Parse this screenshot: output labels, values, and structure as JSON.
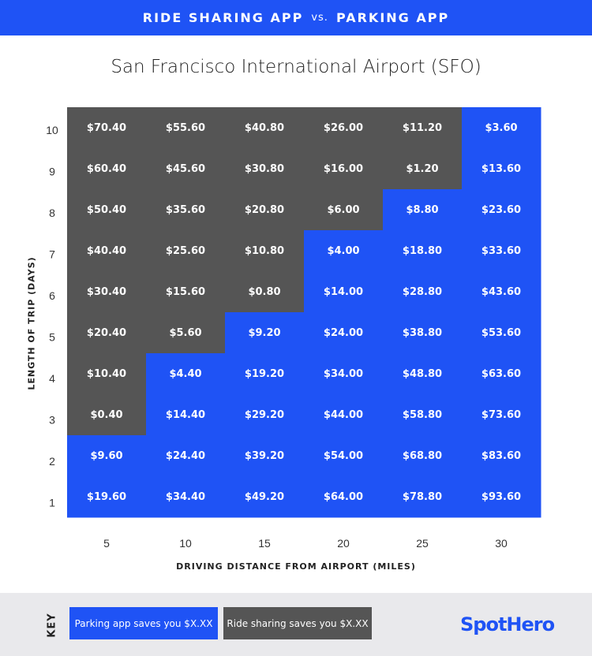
{
  "header": {
    "left": "RIDE SHARING APP",
    "vs": "vs.",
    "right": "PARKING APP"
  },
  "colors": {
    "parking": "#1f53f5",
    "rideshare": "#555555",
    "accent": "#1f53f5"
  },
  "chart_data": {
    "type": "heatmap",
    "title": "San Francisco International Airport (SFO)",
    "xlabel": "DRIVING DISTANCE FROM AIRPORT (MILES)",
    "ylabel": "LENGTH OF TRIP (DAYS)",
    "x": [
      5,
      10,
      15,
      20,
      25,
      30
    ],
    "x_tick_labels": [
      "5",
      "10",
      "15",
      "20",
      "25",
      "30"
    ],
    "y": [
      10,
      9,
      8,
      7,
      6,
      5,
      4,
      3,
      2,
      1
    ],
    "y_tick_labels": [
      "10",
      "9",
      "8",
      "7",
      "6",
      "5",
      "4",
      "3",
      "2",
      "1"
    ],
    "cells": [
      [
        "$70.40",
        "$55.60",
        "$40.80",
        "$26.00",
        "$11.20",
        "$3.60"
      ],
      [
        "$60.40",
        "$45.60",
        "$30.80",
        "$16.00",
        "$1.20",
        "$13.60"
      ],
      [
        "$50.40",
        "$35.60",
        "$20.80",
        "$6.00",
        "$8.80",
        "$23.60"
      ],
      [
        "$40.40",
        "$25.60",
        "$10.80",
        "$4.00",
        "$18.80",
        "$33.60"
      ],
      [
        "$30.40",
        "$15.60",
        "$0.80",
        "$14.00",
        "$28.80",
        "$43.60"
      ],
      [
        "$20.40",
        "$5.60",
        "$9.20",
        "$24.00",
        "$38.80",
        "$53.60"
      ],
      [
        "$10.40",
        "$4.40",
        "$19.20",
        "$34.00",
        "$48.80",
        "$63.60"
      ],
      [
        "$0.40",
        "$14.40",
        "$29.20",
        "$44.00",
        "$58.80",
        "$73.60"
      ],
      [
        "$9.60",
        "$24.40",
        "$39.20",
        "$54.00",
        "$68.80",
        "$83.60"
      ],
      [
        "$19.60",
        "$34.40",
        "$49.20",
        "$64.00",
        "$78.80",
        "$93.60"
      ]
    ],
    "saver": [
      [
        "ride",
        "ride",
        "ride",
        "ride",
        "ride",
        "parking"
      ],
      [
        "ride",
        "ride",
        "ride",
        "ride",
        "ride",
        "parking"
      ],
      [
        "ride",
        "ride",
        "ride",
        "ride",
        "parking",
        "parking"
      ],
      [
        "ride",
        "ride",
        "ride",
        "parking",
        "parking",
        "parking"
      ],
      [
        "ride",
        "ride",
        "ride",
        "parking",
        "parking",
        "parking"
      ],
      [
        "ride",
        "ride",
        "parking",
        "parking",
        "parking",
        "parking"
      ],
      [
        "ride",
        "parking",
        "parking",
        "parking",
        "parking",
        "parking"
      ],
      [
        "ride",
        "parking",
        "parking",
        "parking",
        "parking",
        "parking"
      ],
      [
        "parking",
        "parking",
        "parking",
        "parking",
        "parking",
        "parking"
      ],
      [
        "parking",
        "parking",
        "parking",
        "parking",
        "parking",
        "parking"
      ]
    ]
  },
  "key": {
    "label": "KEY",
    "parking_text": "Parking app saves you $X.XX",
    "ride_text": "Ride sharing saves you $X.XX"
  },
  "logo": {
    "text": "SpotHero"
  }
}
